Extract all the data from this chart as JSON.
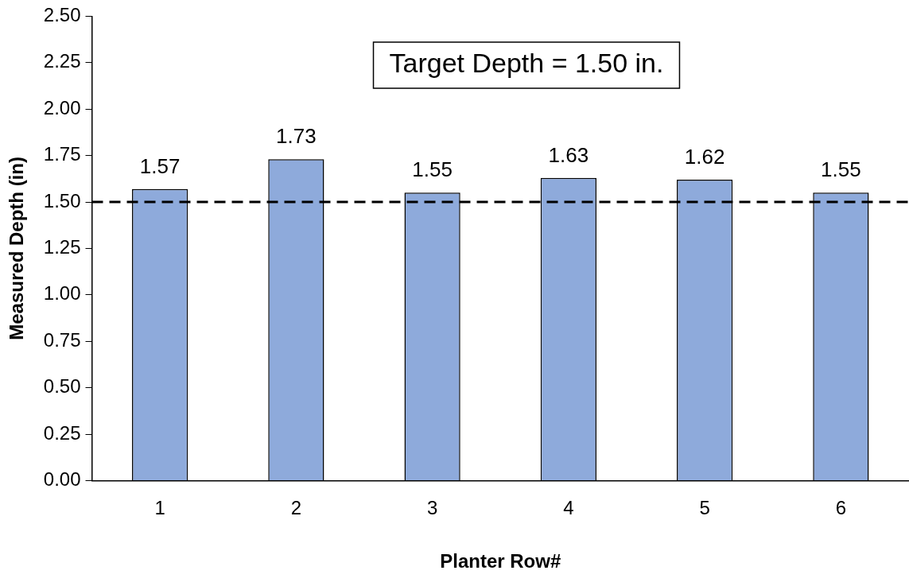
{
  "chart_data": {
    "type": "bar",
    "xlabel": "Planter Row#",
    "ylabel": "Measured Depth (in)",
    "categories": [
      "1",
      "2",
      "3",
      "4",
      "5",
      "6"
    ],
    "values": [
      1.57,
      1.73,
      1.55,
      1.63,
      1.62,
      1.55
    ],
    "color": "#8eaadb",
    "ylim": [
      0,
      2.5
    ],
    "yticks": [
      {
        "value": 0,
        "label": "0.00"
      },
      {
        "value": 0.25,
        "label": "0.25"
      },
      {
        "value": 0.5,
        "label": "0.50"
      },
      {
        "value": 0.75,
        "label": "0.75"
      },
      {
        "value": 1,
        "label": "1.00"
      },
      {
        "value": 1.25,
        "label": "1.25"
      },
      {
        "value": 1.5,
        "label": "1.50"
      },
      {
        "value": 1.75,
        "label": "1.75"
      },
      {
        "value": 2,
        "label": "2.00"
      },
      {
        "value": 2.25,
        "label": "2.25"
      },
      {
        "value": 2.5,
        "label": "2.50"
      }
    ],
    "ref_lines": [
      {
        "axis": "y",
        "value": 1.5,
        "color": "#000000",
        "line_style": "dashed"
      }
    ],
    "annotations": [
      "Target Depth = 1.50 in."
    ],
    "data_labels": true,
    "grid": false,
    "legend": false
  }
}
